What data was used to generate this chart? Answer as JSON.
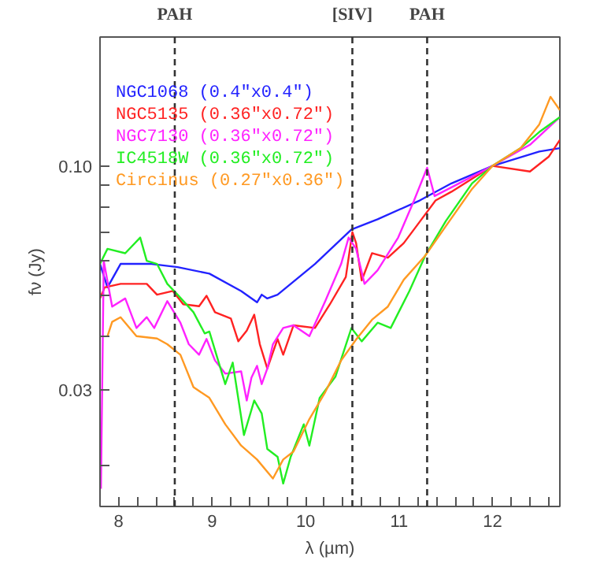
{
  "chart_data": {
    "type": "line",
    "xlabel": "λ (µm)",
    "ylabel": "fν (Jy)",
    "log": "y",
    "xlim": [
      7.8,
      12.72
    ],
    "ylim": [
      0.016,
      0.2
    ],
    "xticks": [
      8,
      {
        "value": 8.2,
        "label": null
      },
      {
        "value": 8.4,
        "label": null
      },
      {
        "value": 8.6,
        "label": null
      },
      {
        "value": 8.8,
        "label": null
      },
      9,
      {
        "value": 9.2,
        "label": null
      },
      {
        "value": 9.4,
        "label": null
      },
      {
        "value": 9.6,
        "label": null
      },
      {
        "value": 9.8,
        "label": null
      },
      10,
      {
        "value": 10.2,
        "label": null
      },
      {
        "value": 10.4,
        "label": null
      },
      {
        "value": 10.6,
        "label": null
      },
      {
        "value": 10.8,
        "label": null
      },
      11,
      {
        "value": 11.2,
        "label": null
      },
      {
        "value": 11.4,
        "label": null
      },
      {
        "value": 11.6,
        "label": null
      },
      {
        "value": 11.8,
        "label": null
      },
      12,
      {
        "value": 12.2,
        "label": null
      },
      {
        "value": 12.4,
        "label": null
      },
      {
        "value": 12.6,
        "label": null
      }
    ],
    "yticks": [
      {
        "value": 0.02,
        "label": null
      },
      0.03,
      {
        "value": 0.04,
        "label": null
      },
      {
        "value": 0.05,
        "label": null
      },
      {
        "value": 0.06,
        "label": null
      },
      {
        "value": 0.07,
        "label": null
      },
      {
        "value": 0.08,
        "label": null
      },
      {
        "value": 0.09,
        "label": null
      },
      {
        "value": 0.1,
        "label": "0.10"
      },
      {
        "value": 0.2,
        "label": null
      }
    ],
    "grid": false,
    "legend": "top left",
    "line_style": "solid",
    "marker": "none",
    "ref_lines": [
      {
        "axis": "x",
        "value": 8.6,
        "label": "PAH",
        "color": "#333333",
        "line_style": "dashed"
      },
      {
        "axis": "x",
        "value": 10.5,
        "label": "[SIV]",
        "color": "#333333",
        "line_style": "dashed"
      },
      {
        "axis": "x",
        "value": 11.3,
        "label": "PAH",
        "color": "#333333",
        "line_style": "dashed"
      }
    ],
    "series": [
      {
        "name": "NGC1068 (0.4\"x0.4\")",
        "color": "#2222ff",
        "x": [
          7.8,
          7.88,
          8.02,
          8.35,
          8.63,
          8.97,
          9.31,
          9.48,
          9.53,
          9.59,
          9.7,
          10.1,
          10.49,
          10.77,
          11.22,
          11.56,
          12.0,
          12.5,
          12.72
        ],
        "values": [
          0.059,
          0.052,
          0.059,
          0.059,
          0.058,
          0.056,
          0.051,
          0.048,
          0.05,
          0.049,
          0.05,
          0.059,
          0.071,
          0.075,
          0.083,
          0.091,
          0.1,
          0.108,
          0.11
        ]
      },
      {
        "name": "NGC5135 (0.36\"x0.72\")",
        "color": "#ff2222",
        "x": [
          7.8,
          7.85,
          8.02,
          8.3,
          8.41,
          8.58,
          8.69,
          8.86,
          8.94,
          9.03,
          9.2,
          9.28,
          9.37,
          9.45,
          9.51,
          9.59,
          9.7,
          9.76,
          9.87,
          10.1,
          10.26,
          10.43,
          10.5,
          10.54,
          10.6,
          10.71,
          10.88,
          11.05,
          11.22,
          11.39,
          11.56,
          12.0,
          12.4,
          12.6,
          12.72
        ],
        "values": [
          0.049,
          0.052,
          0.053,
          0.053,
          0.05,
          0.051,
          0.0475,
          0.047,
          0.0497,
          0.0455,
          0.044,
          0.0389,
          0.0412,
          0.0449,
          0.0383,
          0.0336,
          0.0394,
          0.0362,
          0.0424,
          0.0418,
          0.0475,
          0.055,
          0.07,
          0.066,
          0.054,
          0.0625,
          0.061,
          0.066,
          0.074,
          0.083,
          0.087,
          0.1,
          0.097,
          0.105,
          0.115
        ]
      },
      {
        "name": "NGC7130 (0.36\"x0.72\")",
        "color": "#ff22ff",
        "x": [
          7.81,
          7.84,
          7.93,
          8.07,
          8.19,
          8.3,
          8.38,
          8.52,
          8.66,
          8.75,
          8.86,
          8.94,
          9.03,
          9.14,
          9.31,
          9.37,
          9.42,
          9.48,
          9.53,
          9.59,
          9.65,
          9.76,
          9.87,
          10.04,
          10.21,
          10.38,
          10.46,
          10.54,
          10.63,
          10.77,
          10.99,
          11.16,
          11.3,
          11.38,
          11.6,
          12.0,
          12.4,
          12.72
        ],
        "values": [
          0.0176,
          0.06,
          0.0469,
          0.049,
          0.0418,
          0.0443,
          0.0418,
          0.0483,
          0.043,
          0.0383,
          0.0362,
          0.0394,
          0.0351,
          0.0327,
          0.0331,
          0.0283,
          0.032,
          0.0341,
          0.0309,
          0.0336,
          0.0383,
          0.0418,
          0.0424,
          0.04,
          0.0483,
          0.059,
          0.068,
          0.064,
          0.053,
          0.057,
          0.068,
          0.083,
          0.099,
          0.085,
          0.09,
          0.1,
          0.112,
          0.13
        ]
      },
      {
        "name": "IC4518W (0.36\"x0.72\")",
        "color": "#22ee22",
        "x": [
          7.8,
          7.88,
          8.07,
          8.23,
          8.3,
          8.41,
          8.52,
          8.63,
          8.8,
          8.92,
          8.97,
          9.14,
          9.22,
          9.34,
          9.45,
          9.53,
          9.59,
          9.7,
          9.76,
          9.84,
          9.98,
          10.04,
          10.15,
          10.32,
          10.49,
          10.6,
          10.77,
          10.91,
          11.11,
          11.28,
          11.5,
          11.78,
          12.0,
          12.3,
          12.5,
          12.72
        ],
        "values": [
          0.059,
          0.064,
          0.0625,
          0.068,
          0.06,
          0.059,
          0.053,
          0.05,
          0.0455,
          0.0406,
          0.041,
          0.0309,
          0.0347,
          0.0235,
          0.0283,
          0.0264,
          0.0218,
          0.0209,
          0.0181,
          0.0209,
          0.0249,
          0.0222,
          0.0287,
          0.0322,
          0.0418,
          0.0389,
          0.043,
          0.0418,
          0.051,
          0.0617,
          0.0743,
          0.091,
          0.1,
          0.11,
          0.12,
          0.13
        ]
      },
      {
        "name": "Circinus (0.27\"x0.36\")",
        "color": "#ff9922",
        "x": [
          7.88,
          7.93,
          8.02,
          8.19,
          8.41,
          8.52,
          8.66,
          8.8,
          8.97,
          9.14,
          9.31,
          9.48,
          9.65,
          9.76,
          9.87,
          10.04,
          10.21,
          10.38,
          10.54,
          10.71,
          10.88,
          11.05,
          11.28,
          11.5,
          11.78,
          12.0,
          12.3,
          12.5,
          12.62,
          12.72
        ],
        "values": [
          0.04,
          0.0432,
          0.0443,
          0.04,
          0.0395,
          0.0383,
          0.0362,
          0.0304,
          0.0287,
          0.0249,
          0.0222,
          0.0206,
          0.0186,
          0.0206,
          0.0215,
          0.0256,
          0.0296,
          0.0351,
          0.0393,
          0.0437,
          0.0469,
          0.0542,
          0.0617,
          0.0723,
          0.0883,
          0.1,
          0.11,
          0.125,
          0.145,
          0.135
        ]
      }
    ]
  }
}
